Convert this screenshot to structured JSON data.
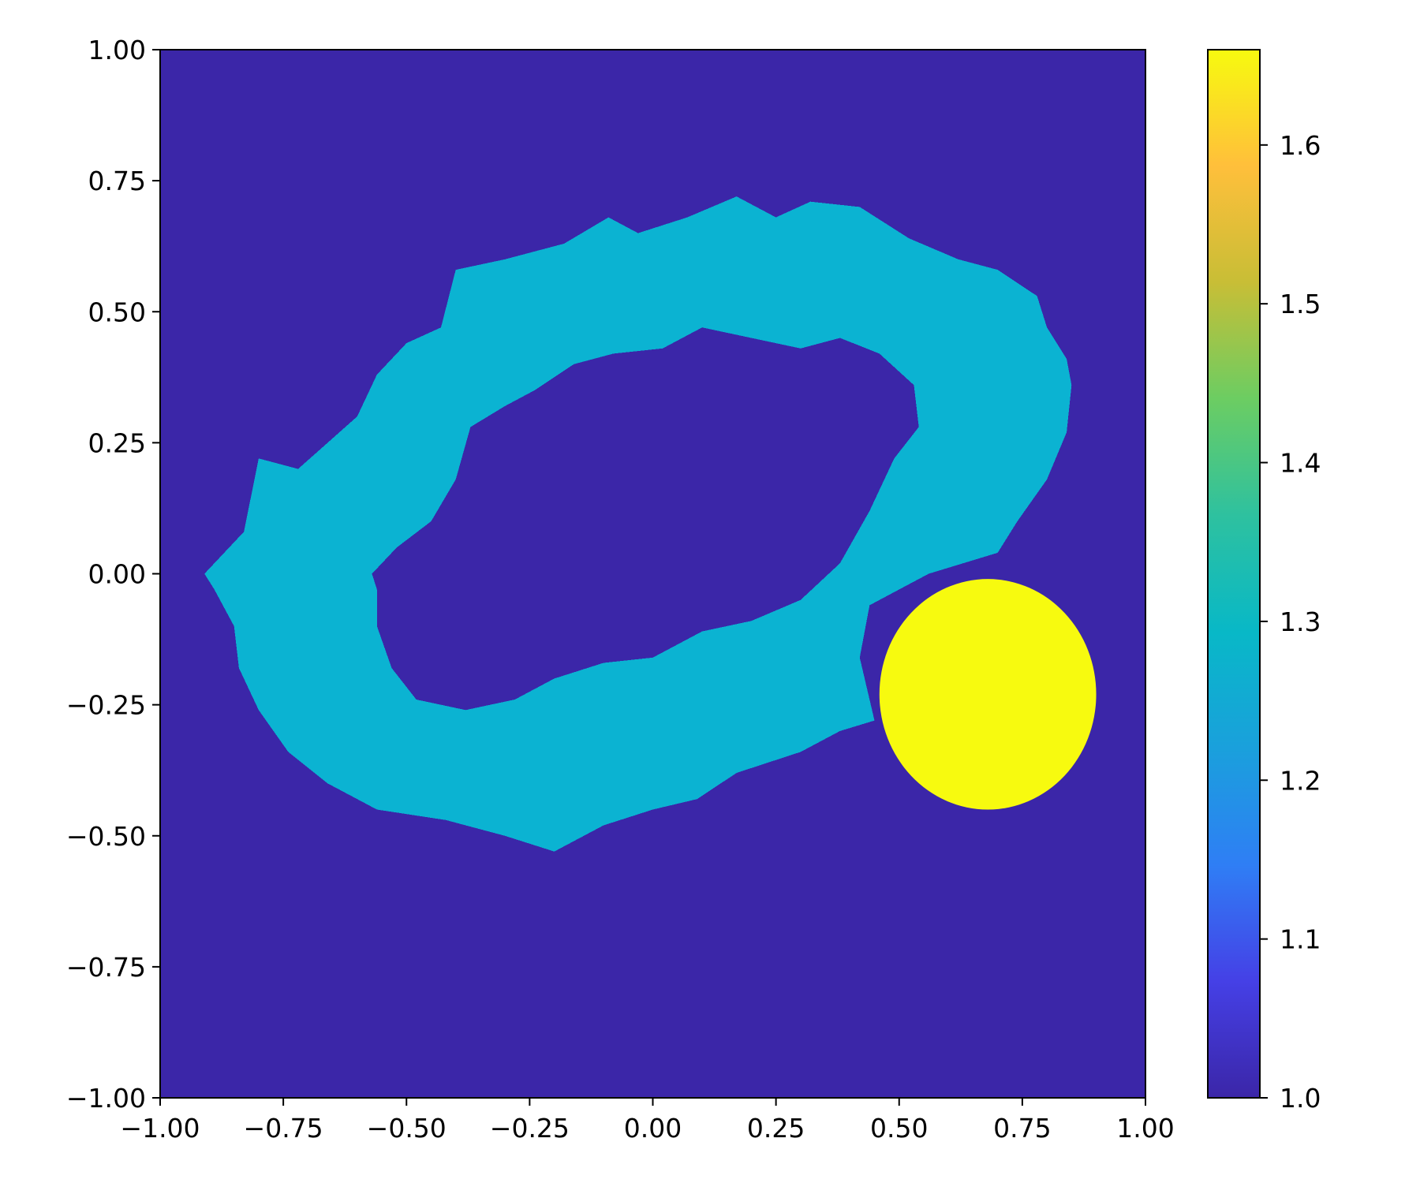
{
  "chart_data": {
    "type": "heatmap",
    "title": "",
    "xlabel": "",
    "ylabel": "",
    "xlim": [
      -1.0,
      1.0
    ],
    "ylim": [
      -1.0,
      1.0
    ],
    "x_ticks": [
      -1.0,
      -0.75,
      -0.5,
      -0.25,
      0.0,
      0.25,
      0.5,
      0.75,
      1.0
    ],
    "x_tick_labels": [
      "−1.00",
      "−0.75",
      "−0.50",
      "−0.25",
      "0.00",
      "0.25",
      "0.50",
      "0.75",
      "1.00"
    ],
    "y_ticks": [
      1.0,
      0.75,
      0.5,
      0.25,
      0.0,
      -0.25,
      -0.5,
      -0.75,
      -1.0
    ],
    "y_tick_labels": [
      "1.00",
      "0.75",
      "0.50",
      "0.25",
      "0.00",
      "−0.25",
      "−0.50",
      "−0.75",
      "−1.00"
    ],
    "grid": false,
    "colorbar": {
      "range": [
        1.0,
        1.66
      ],
      "ticks": [
        1.0,
        1.1,
        1.2,
        1.3,
        1.4,
        1.5,
        1.6
      ],
      "tick_labels": [
        "1.0",
        "1.1",
        "1.2",
        "1.3",
        "1.4",
        "1.5",
        "1.6"
      ],
      "colormap": "plasma-like (indigo → blue → teal → green → orange → yellow)",
      "color_stops": [
        "#3b26a8",
        "#4540e6",
        "#2f7ef5",
        "#1aa0dc",
        "#08b8c7",
        "#2ec19f",
        "#6ccd62",
        "#c8be36",
        "#ffbf3b",
        "#f7fa0f"
      ]
    },
    "regions": [
      {
        "value": 1.0,
        "color": "#3b26a8",
        "shape": "background",
        "x_range": [
          -1.0,
          1.0
        ],
        "y_range": [
          -1.0,
          1.0
        ]
      },
      {
        "value": 1.29,
        "color": "#0bb3d2",
        "shape": "ring",
        "outer_outline": [
          [
            -0.91,
            0.0
          ],
          [
            -0.83,
            0.08
          ],
          [
            -0.8,
            0.22
          ],
          [
            -0.72,
            0.2
          ],
          [
            -0.66,
            0.25
          ],
          [
            -0.6,
            0.3
          ],
          [
            -0.56,
            0.38
          ],
          [
            -0.5,
            0.44
          ],
          [
            -0.43,
            0.47
          ],
          [
            -0.4,
            0.58
          ],
          [
            -0.3,
            0.6
          ],
          [
            -0.18,
            0.63
          ],
          [
            -0.09,
            0.68
          ],
          [
            -0.03,
            0.65
          ],
          [
            0.07,
            0.68
          ],
          [
            0.17,
            0.72
          ],
          [
            0.25,
            0.68
          ],
          [
            0.32,
            0.71
          ],
          [
            0.42,
            0.7
          ],
          [
            0.52,
            0.64
          ],
          [
            0.62,
            0.6
          ],
          [
            0.7,
            0.58
          ],
          [
            0.78,
            0.53
          ],
          [
            0.8,
            0.47
          ],
          [
            0.84,
            0.41
          ],
          [
            0.85,
            0.36
          ],
          [
            0.84,
            0.27
          ],
          [
            0.8,
            0.18
          ],
          [
            0.74,
            0.1
          ],
          [
            0.7,
            0.04
          ],
          [
            0.56,
            0.0
          ],
          [
            0.44,
            -0.06
          ],
          [
            0.42,
            -0.16
          ],
          [
            0.45,
            -0.28
          ],
          [
            0.38,
            -0.3
          ],
          [
            0.3,
            -0.34
          ],
          [
            0.17,
            -0.38
          ],
          [
            0.09,
            -0.43
          ],
          [
            0.0,
            -0.45
          ],
          [
            -0.1,
            -0.48
          ],
          [
            -0.2,
            -0.53
          ],
          [
            -0.3,
            -0.5
          ],
          [
            -0.42,
            -0.47
          ],
          [
            -0.56,
            -0.45
          ],
          [
            -0.66,
            -0.4
          ],
          [
            -0.74,
            -0.34
          ],
          [
            -0.8,
            -0.26
          ],
          [
            -0.84,
            -0.18
          ],
          [
            -0.85,
            -0.1
          ],
          [
            -0.89,
            -0.03
          ]
        ],
        "inner_outline": [
          [
            -0.57,
            0.0
          ],
          [
            -0.52,
            0.05
          ],
          [
            -0.45,
            0.1
          ],
          [
            -0.4,
            0.18
          ],
          [
            -0.37,
            0.28
          ],
          [
            -0.3,
            0.32
          ],
          [
            -0.24,
            0.35
          ],
          [
            -0.16,
            0.4
          ],
          [
            -0.08,
            0.42
          ],
          [
            0.02,
            0.43
          ],
          [
            0.1,
            0.47
          ],
          [
            0.2,
            0.45
          ],
          [
            0.3,
            0.43
          ],
          [
            0.38,
            0.45
          ],
          [
            0.46,
            0.42
          ],
          [
            0.53,
            0.36
          ],
          [
            0.54,
            0.28
          ],
          [
            0.49,
            0.22
          ],
          [
            0.44,
            0.12
          ],
          [
            0.38,
            0.02
          ],
          [
            0.3,
            -0.05
          ],
          [
            0.2,
            -0.09
          ],
          [
            0.1,
            -0.11
          ],
          [
            0.0,
            -0.16
          ],
          [
            -0.1,
            -0.17
          ],
          [
            -0.2,
            -0.2
          ],
          [
            -0.28,
            -0.24
          ],
          [
            -0.38,
            -0.26
          ],
          [
            -0.48,
            -0.24
          ],
          [
            -0.53,
            -0.18
          ],
          [
            -0.56,
            -0.1
          ],
          [
            -0.56,
            -0.03
          ]
        ]
      },
      {
        "value": 1.66,
        "color": "#f7fa0f",
        "shape": "disk",
        "center": [
          0.68,
          -0.23
        ],
        "radius": 0.22
      }
    ]
  }
}
